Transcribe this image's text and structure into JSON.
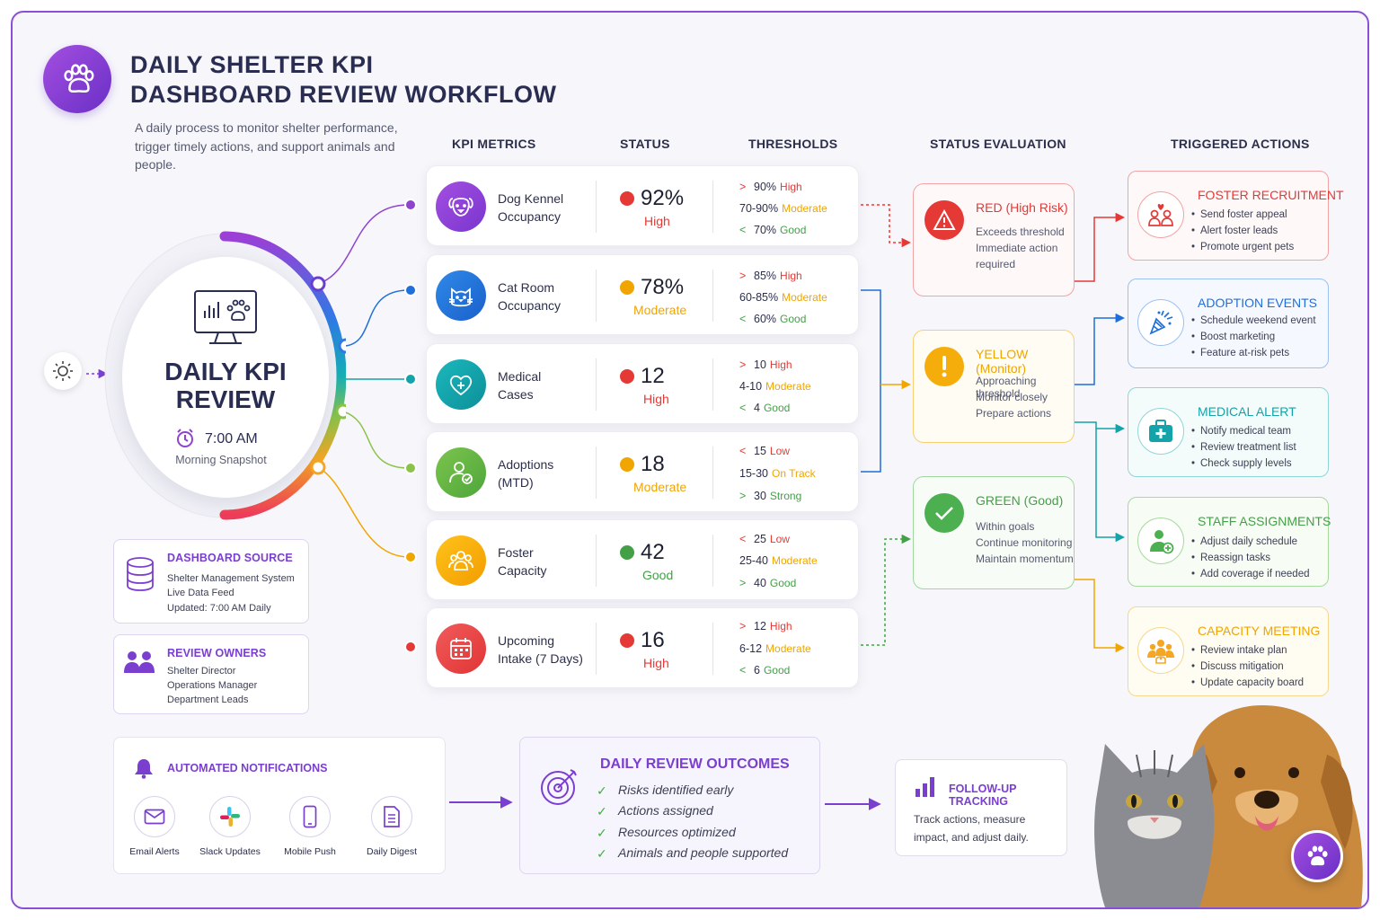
{
  "header": {
    "title_line1": "DAILY SHELTER KPI",
    "title_line2": "DASHBOARD REVIEW WORKFLOW",
    "subtitle": "A daily process to monitor shelter performance, trigger timely actions, and support animals and people."
  },
  "columns": {
    "kpi": "KPI METRICS",
    "status": "STATUS",
    "thresholds": "THRESHOLDS",
    "evaluation": "STATUS EVALUATION",
    "actions": "TRIGGERED ACTIONS"
  },
  "hub": {
    "title_line1": "DAILY KPI",
    "title_line2": "REVIEW",
    "time": "7:00 AM",
    "caption": "Morning Snapshot"
  },
  "kpis": [
    {
      "name_line1": "Dog Kennel",
      "name_line2": "Occupancy",
      "value": "92%",
      "level": "High",
      "color": "#e53935",
      "icon": "dog-icon",
      "thresholds": [
        {
          "cmp": ">",
          "range": "90%",
          "label": "High",
          "color": "#e53935"
        },
        {
          "cmp": "",
          "range": "70-90%",
          "label": "Moderate",
          "color": "#f0a500"
        },
        {
          "cmp": "<",
          "range": "70%",
          "label": "Good",
          "color": "#43a047"
        }
      ]
    },
    {
      "name_line1": "Cat Room",
      "name_line2": "Occupancy",
      "value": "78%",
      "level": "Moderate",
      "color": "#f0a500",
      "icon": "cat-icon",
      "thresholds": [
        {
          "cmp": ">",
          "range": "85%",
          "label": "High",
          "color": "#e53935"
        },
        {
          "cmp": "",
          "range": "60-85%",
          "label": "Moderate",
          "color": "#f0a500"
        },
        {
          "cmp": "<",
          "range": "60%",
          "label": "Good",
          "color": "#43a047"
        }
      ]
    },
    {
      "name_line1": "Medical",
      "name_line2": "Cases",
      "value": "12",
      "level": "High",
      "color": "#e53935",
      "icon": "heart-medical-icon",
      "thresholds": [
        {
          "cmp": ">",
          "range": "10",
          "label": "High",
          "color": "#e53935"
        },
        {
          "cmp": "",
          "range": "4-10",
          "label": "Moderate",
          "color": "#f0a500"
        },
        {
          "cmp": "<",
          "range": "4",
          "label": "Good",
          "color": "#43a047"
        }
      ]
    },
    {
      "name_line1": "Adoptions",
      "name_line2": "(MTD)",
      "value": "18",
      "level": "Moderate",
      "color": "#f0a500",
      "icon": "person-check-icon",
      "thresholds": [
        {
          "cmp": "<",
          "range": "15",
          "label": "Low",
          "color": "#e53935"
        },
        {
          "cmp": "",
          "range": "15-30",
          "label": "On Track",
          "color": "#f0a500"
        },
        {
          "cmp": ">",
          "range": "30",
          "label": "Strong",
          "color": "#43a047"
        }
      ]
    },
    {
      "name_line1": "Foster",
      "name_line2": "Capacity",
      "value": "42",
      "level": "Good",
      "color": "#43a047",
      "icon": "group-icon",
      "thresholds": [
        {
          "cmp": "<",
          "range": "25",
          "label": "Low",
          "color": "#e53935"
        },
        {
          "cmp": "",
          "range": "25-40",
          "label": "Moderate",
          "color": "#f0a500"
        },
        {
          "cmp": ">",
          "range": "40",
          "label": "Good",
          "color": "#43a047"
        }
      ]
    },
    {
      "name_line1": "Upcoming",
      "name_line2": "Intake (7 Days)",
      "value": "16",
      "level": "High",
      "color": "#e53935",
      "icon": "calendar-icon",
      "thresholds": [
        {
          "cmp": ">",
          "range": "12",
          "label": "High",
          "color": "#e53935"
        },
        {
          "cmp": "",
          "range": "6-12",
          "label": "Moderate",
          "color": "#f0a500"
        },
        {
          "cmp": "<",
          "range": "6",
          "label": "Good",
          "color": "#43a047"
        }
      ]
    }
  ],
  "evaluation": [
    {
      "title": "RED (High Risk)",
      "lines": [
        "Exceeds threshold",
        "Immediate action",
        "required"
      ],
      "color": "#e53935",
      "icon": "warning-icon"
    },
    {
      "title": "YELLOW (Monitor)",
      "lines": [
        "Approaching threshold",
        "Monitor closely",
        "Prepare actions"
      ],
      "color": "#f0a500",
      "icon": "exclamation-icon"
    },
    {
      "title": "GREEN (Good)",
      "lines": [
        "Within goals",
        "Continue monitoring",
        "Maintain momentum"
      ],
      "color": "#43a047",
      "icon": "checkmark-icon"
    }
  ],
  "actions": [
    {
      "title": "FOSTER RECRUITMENT",
      "items": [
        "Send foster appeal",
        "Alert foster leads",
        "Promote urgent pets"
      ],
      "color": "#e53935",
      "icon": "foster-icon"
    },
    {
      "title": "ADOPTION EVENTS",
      "items": [
        "Schedule weekend event",
        "Boost marketing",
        "Feature at-risk pets"
      ],
      "color": "#1e6fd9",
      "icon": "party-popper-icon"
    },
    {
      "title": "MEDICAL ALERT",
      "items": [
        "Notify medical team",
        "Review treatment list",
        "Check supply levels"
      ],
      "color": "#14a3a8",
      "icon": "medical-kit-icon"
    },
    {
      "title": "STAFF ASSIGNMENTS",
      "items": [
        "Adjust daily schedule",
        "Reassign tasks",
        "Add coverage if needed"
      ],
      "color": "#43a047",
      "icon": "staff-icon"
    },
    {
      "title": "CAPACITY MEETING",
      "items": [
        "Review intake plan",
        "Discuss mitigation",
        "Update capacity board"
      ],
      "color": "#f0a500",
      "icon": "meeting-icon"
    }
  ],
  "source": {
    "title": "DASHBOARD SOURCE",
    "lines": [
      "Shelter Management System",
      "Live Data Feed",
      "Updated: 7:00 AM Daily"
    ]
  },
  "owners": {
    "title": "REVIEW OWNERS",
    "lines": [
      "Shelter Director",
      "Operations Manager",
      "Department Leads"
    ]
  },
  "notifications": {
    "title": "AUTOMATED NOTIFICATIONS",
    "channels": [
      {
        "label": "Email Alerts",
        "icon": "email-icon"
      },
      {
        "label": "Slack Updates",
        "icon": "slack-icon"
      },
      {
        "label": "Mobile Push",
        "icon": "mobile-icon"
      },
      {
        "label": "Daily Digest",
        "icon": "document-icon"
      }
    ]
  },
  "outcomes": {
    "title": "DAILY REVIEW OUTCOMES",
    "items": [
      "Risks identified early",
      "Actions assigned",
      "Resources optimized",
      "Animals and people supported"
    ]
  },
  "followup": {
    "title": "FOLLOW-UP TRACKING",
    "text": "Track actions, measure impact, and adjust daily."
  }
}
